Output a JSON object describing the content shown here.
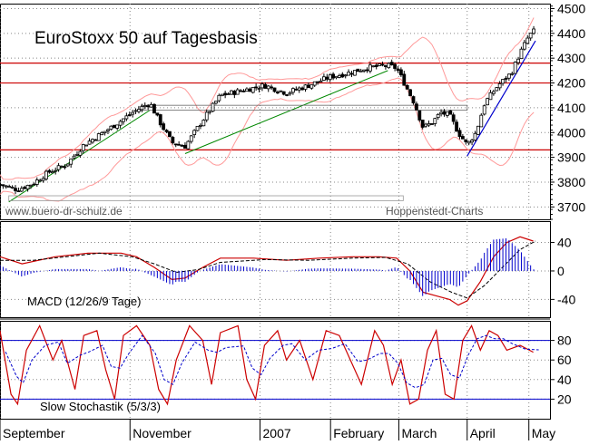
{
  "chart_data": {
    "type": "candlestick",
    "title": "EuroStoxx 50 auf Tagesbasis",
    "source_left": "www.buero-dr-schulz.de",
    "source_right": "Hoppenstedt-Charts",
    "x_labels": [
      "September",
      "November",
      "2007",
      "February",
      "March",
      "April",
      "May"
    ],
    "x_label_days": [
      0,
      59,
      118,
      150,
      181,
      212,
      240
    ],
    "x_range_days": [
      0,
      243
    ],
    "price_panel": {
      "y_ticks": [
        3700,
        3800,
        3900,
        4000,
        4100,
        4200,
        4300,
        4400,
        4500
      ],
      "ylim": [
        3650,
        4520
      ],
      "horizontal_lines": [
        4280,
        4200,
        3930
      ],
      "close_series": [
        [
          0,
          3790
        ],
        [
          8,
          3770
        ],
        [
          15,
          3795
        ],
        [
          22,
          3840
        ],
        [
          30,
          3870
        ],
        [
          38,
          3950
        ],
        [
          45,
          3990
        ],
        [
          52,
          4030
        ],
        [
          60,
          4080
        ],
        [
          68,
          4120
        ],
        [
          72,
          4050
        ],
        [
          78,
          3960
        ],
        [
          84,
          3945
        ],
        [
          92,
          4050
        ],
        [
          100,
          4150
        ],
        [
          110,
          4170
        ],
        [
          120,
          4190
        ],
        [
          130,
          4160
        ],
        [
          140,
          4190
        ],
        [
          150,
          4225
        ],
        [
          158,
          4240
        ],
        [
          166,
          4260
        ],
        [
          170,
          4265
        ],
        [
          176,
          4270
        ],
        [
          180,
          4260
        ],
        [
          184,
          4190
        ],
        [
          188,
          4120
        ],
        [
          192,
          4020
        ],
        [
          196,
          4040
        ],
        [
          200,
          4080
        ],
        [
          204,
          4070
        ],
        [
          208,
          4000
        ],
        [
          212,
          3950
        ],
        [
          216,
          4000
        ],
        [
          220,
          4120
        ],
        [
          226,
          4190
        ],
        [
          232,
          4240
        ],
        [
          236,
          4320
        ],
        [
          240,
          4390
        ],
        [
          243,
          4415
        ],
        [
          243,
          4410
        ]
      ]
    },
    "macd_panel": {
      "label": "MACD (12/26/9 Tage)",
      "y_ticks": [
        -40,
        0,
        40
      ],
      "ylim": [
        -65,
        70
      ]
    },
    "stochastic_panel": {
      "label": "Slow Stochastik (5/3/3)",
      "y_ticks": [
        20,
        40,
        60,
        80
      ],
      "ylim": [
        0,
        100
      ],
      "reference_lines": [
        80,
        20
      ]
    },
    "colors": {
      "candles": "#000000",
      "support_lines": "#cc0000",
      "trend_line": "#008800",
      "trend_line_up": "#0000cc",
      "bollinger": "#ff9999",
      "macd_line": "#cc0000",
      "macd_signal": "#000000",
      "macd_histogram": "#0000cc",
      "stoch_k": "#cc0000",
      "stoch_d": "#0000cc",
      "grid": "#888888"
    }
  }
}
